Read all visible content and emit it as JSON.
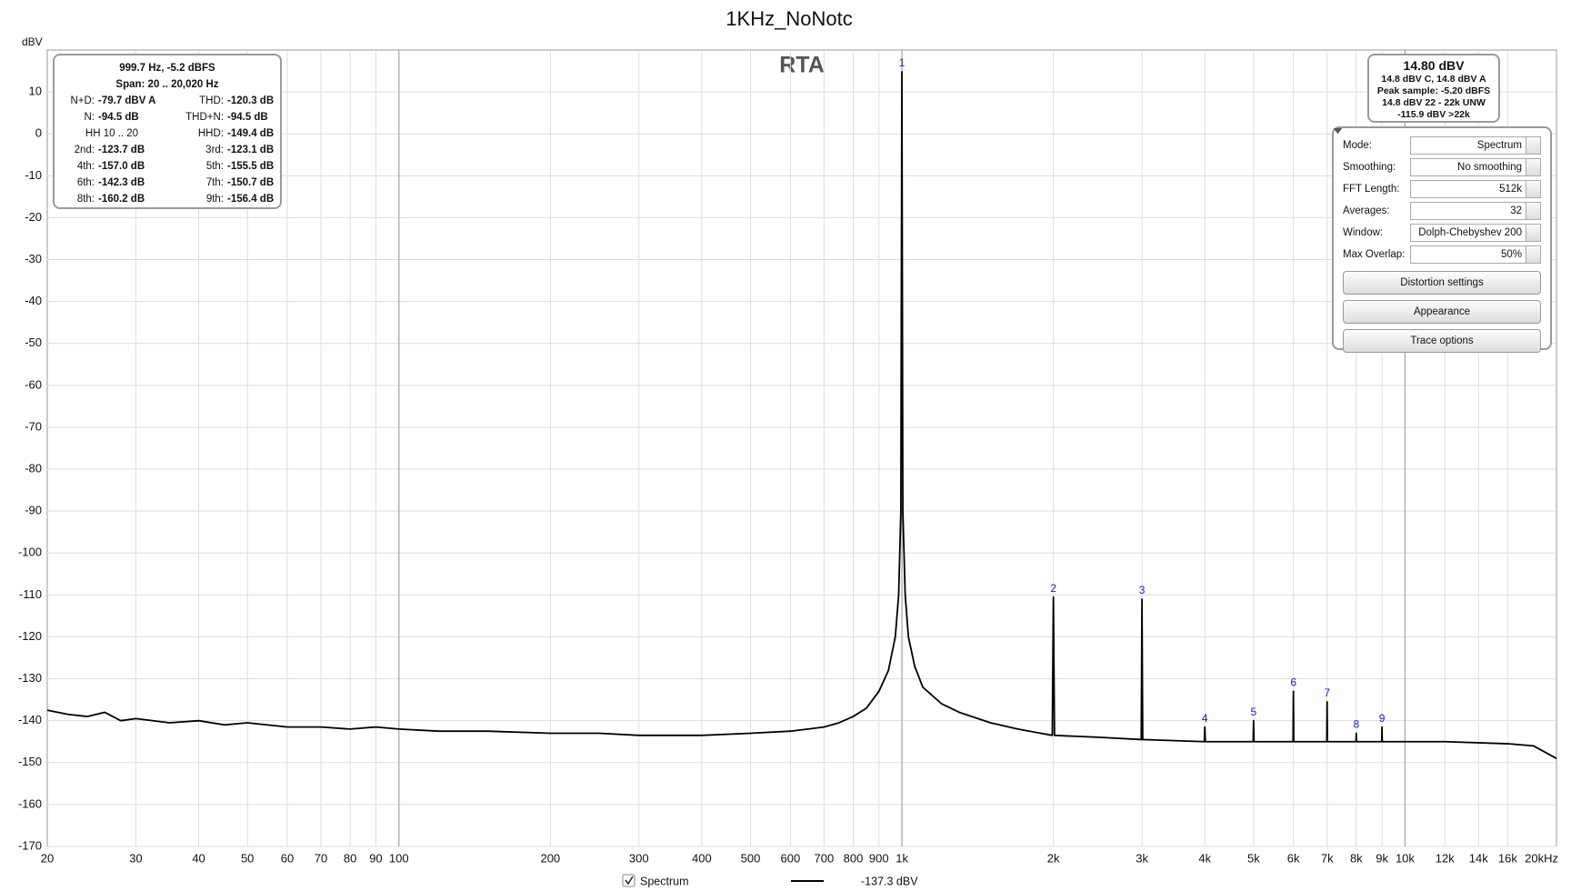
{
  "chart_data": {
    "type": "line",
    "title": "1KHz_NoNotc",
    "y_label": "dBV",
    "watermark": "RTA",
    "x_scale": "log",
    "xlim": [
      20,
      20000
    ],
    "ylim": [
      -170,
      20
    ],
    "yticks": [
      -170,
      -160,
      -150,
      -140,
      -130,
      -120,
      -110,
      -100,
      -90,
      -80,
      -70,
      -60,
      -50,
      -40,
      -30,
      -20,
      -10,
      0,
      10
    ],
    "xticks": [
      20,
      30,
      40,
      50,
      60,
      70,
      80,
      90,
      100,
      200,
      300,
      400,
      500,
      600,
      700,
      800,
      900,
      {
        "value": 1000,
        "label": "1k"
      },
      {
        "value": 2000,
        "label": "2k"
      },
      {
        "value": 3000,
        "label": "3k"
      },
      {
        "value": 4000,
        "label": "4k"
      },
      {
        "value": 5000,
        "label": "5k"
      },
      {
        "value": 6000,
        "label": "6k"
      },
      {
        "value": 7000,
        "label": "7k"
      },
      {
        "value": 8000,
        "label": "8k"
      },
      {
        "value": 9000,
        "label": "9k"
      },
      {
        "value": 10000,
        "label": "10k"
      },
      {
        "value": 12000,
        "label": "12k"
      },
      {
        "value": 14000,
        "label": "14k"
      },
      {
        "value": 16000,
        "label": "16k"
      },
      {
        "value": 20000,
        "label": "20kHz"
      }
    ],
    "grid": true,
    "series": [
      {
        "name": "Spectrum",
        "color": "#000000",
        "x": [
          20,
          22,
          24,
          26,
          28,
          30,
          35,
          40,
          45,
          50,
          60,
          70,
          80,
          90,
          100,
          120,
          150,
          200,
          250,
          300,
          400,
          500,
          600,
          650,
          700,
          750,
          800,
          850,
          900,
          940,
          970,
          985,
          995,
          999.7,
          1004,
          1015,
          1030,
          1060,
          1100,
          1200,
          1300,
          1500,
          1700,
          1990,
          2000,
          2010,
          2500,
          2990,
          3000,
          3010,
          3990,
          4000,
          4010,
          4990,
          5000,
          5010,
          5990,
          6000,
          6010,
          6990,
          7000,
          7010,
          7990,
          8000,
          8010,
          8990,
          9000,
          9010,
          12000,
          16000,
          18000,
          20000
        ],
        "values": [
          -137.5,
          -138.5,
          -139,
          -138,
          -140,
          -139.5,
          -140.5,
          -140,
          -141,
          -140.5,
          -141.5,
          -141.5,
          -142,
          -141.5,
          -142,
          -142.5,
          -142.5,
          -143,
          -143,
          -143.5,
          -143.5,
          -143,
          -142.5,
          -142,
          -141.5,
          -140.5,
          -139,
          -137,
          -133,
          -128,
          -120,
          -110,
          -90,
          14.8,
          -90,
          -110,
          -120,
          -127,
          -132,
          -136,
          -138,
          -140.5,
          -142,
          -143.5,
          -110.5,
          -143.5,
          -144,
          -144.5,
          -111,
          -144.5,
          -145,
          -141.5,
          -145,
          -145,
          -140,
          -145,
          -145,
          -133,
          -145,
          -145,
          -135.5,
          -145,
          -145,
          -143,
          -145,
          -145,
          -141.5,
          -145,
          -145,
          -145.5,
          -146,
          -149
        ]
      }
    ],
    "peak_label_color": "#1a1acc",
    "peak_labels": [
      {
        "label": "1",
        "x": 999.7,
        "y": 14.8
      },
      {
        "label": "2",
        "x": 2000,
        "y": -110.5
      },
      {
        "label": "3",
        "x": 3000,
        "y": -111
      },
      {
        "label": "4",
        "x": 4000,
        "y": -141.5
      },
      {
        "label": "5",
        "x": 5000,
        "y": -140
      },
      {
        "label": "6",
        "x": 6000,
        "y": -133
      },
      {
        "label": "7",
        "x": 7000,
        "y": -135.5
      },
      {
        "label": "8",
        "x": 8000,
        "y": -143
      },
      {
        "label": "9",
        "x": 9000,
        "y": -141.5
      }
    ]
  },
  "info_panel": {
    "header": [
      "999.7 Hz, -5.2 dBFS",
      "Span: 20 .. 20,020 Hz"
    ],
    "rows": [
      {
        "left": [
          "N+D:",
          "-79.7 dBV A"
        ],
        "right": [
          "THD:",
          "-120.3 dB"
        ]
      },
      {
        "left": [
          "N:",
          "-94.5 dB"
        ],
        "right": [
          "THD+N:",
          "-94.5 dB"
        ]
      },
      {
        "left": [
          "HH 10 .. 20"
        ],
        "right": [
          "HHD:",
          "-149.4 dB"
        ]
      },
      {
        "left": [
          "2nd:",
          "-123.7 dB"
        ],
        "right": [
          "3rd:",
          "-123.1 dB"
        ]
      },
      {
        "left": [
          "4th:",
          "-157.0 dB"
        ],
        "right": [
          "5th:",
          "-155.5 dB"
        ]
      },
      {
        "left": [
          "6th:",
          "-142.3 dB"
        ],
        "right": [
          "7th:",
          "-150.7 dB"
        ]
      },
      {
        "left": [
          "8th:",
          "-160.2 dB"
        ],
        "right": [
          "9th:",
          "-156.4 dB"
        ]
      }
    ]
  },
  "level_panel": {
    "title": "14.80 dBV",
    "lines": [
      "14.8 dBV C, 14.8 dBV A",
      "Peak sample: -5.20 dBFS",
      "14.8 dBV 22 - 22k UNW",
      "-115.9 dBV >22k"
    ]
  },
  "controls": {
    "fields": [
      {
        "label": "Mode:",
        "value": "Spectrum"
      },
      {
        "label": "Smoothing:",
        "value": "No  smoothing"
      },
      {
        "label": "FFT Length:",
        "value": "512k"
      },
      {
        "label": "Averages:",
        "value": "32"
      },
      {
        "label": "Window:",
        "value": "Dolph-Chebyshev 200"
      },
      {
        "label": "Max Overlap:",
        "value": "50%"
      }
    ],
    "buttons": [
      "Distortion settings",
      "Appearance",
      "Trace options"
    ]
  },
  "legend_bar": {
    "reading": "-137.3 dBV"
  }
}
